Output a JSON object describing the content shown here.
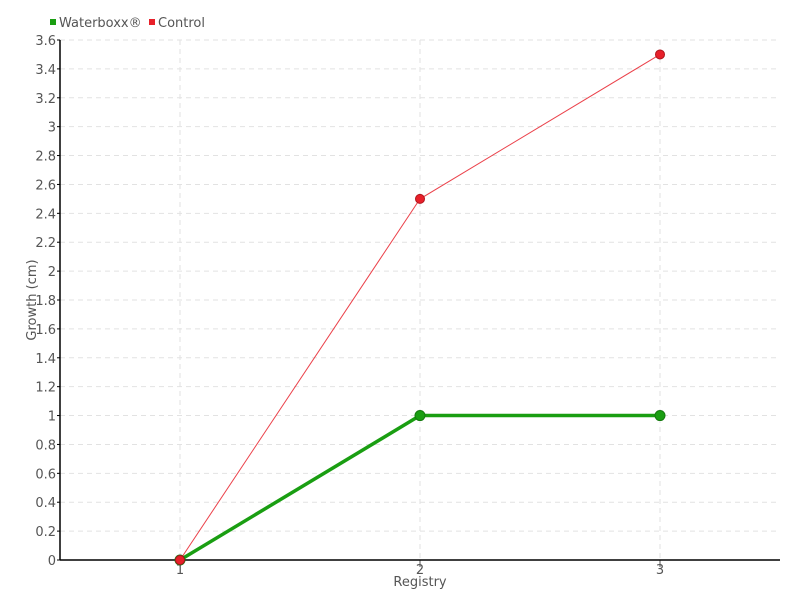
{
  "chart_data": {
    "type": "line",
    "title": "",
    "xlabel": "Registry",
    "ylabel": "Growth (cm)",
    "x": [
      1,
      2,
      3
    ],
    "x_tick_labels": [
      "1",
      "2",
      "3"
    ],
    "xlim": [
      0.5,
      3.5
    ],
    "ylim": [
      0,
      3.6
    ],
    "y_ticks": [
      "0",
      "0.2",
      "0.4",
      "0.6",
      "0.8",
      "1",
      "1.2",
      "1.4",
      "1.6",
      "1.8",
      "2",
      "2.2",
      "2.4",
      "2.6",
      "2.8",
      "3",
      "3.2",
      "3.4",
      "3.6"
    ],
    "grid": true,
    "legend_position": "top-left",
    "series": [
      {
        "name": "Waterboxx®",
        "values": [
          0,
          1,
          1
        ],
        "color": "#1a9e12"
      },
      {
        "name": "Control",
        "values": [
          0,
          2.5,
          3.5
        ],
        "color": "#e8202a"
      }
    ]
  }
}
